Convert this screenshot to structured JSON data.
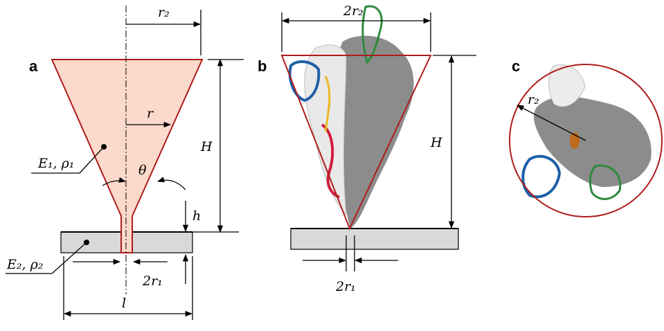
{
  "panels": [
    {
      "label": "a",
      "texts": {
        "top_radius": "r₂",
        "radius": "r",
        "height": "H",
        "cone_material": "E₁, ρ₁",
        "angle": "θ",
        "small_height": "h",
        "substrate_material": "E₂, ρ₂",
        "tip_width": "2r₁",
        "length": "l"
      }
    },
    {
      "label": "b",
      "texts": {
        "top_width": "2r₂",
        "height": "H",
        "tip_width": "2r₁"
      }
    },
    {
      "label": "c",
      "texts": {
        "radius": "r₂"
      }
    }
  ]
}
